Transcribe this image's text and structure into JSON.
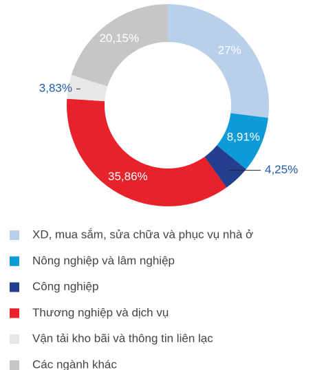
{
  "chart_data": {
    "type": "donut",
    "categories": [
      "XD, mua sắm, sửa chữa và phục vụ nhà ở",
      "Nông nghiệp và lâm nghiệp",
      "Công nghiệp",
      "Thương nghiệp và dịch vụ",
      "Vận tải kho bãi và thông tin liên lạc",
      "Các ngành khác"
    ],
    "values": [
      27,
      8.91,
      4.25,
      35.86,
      3.83,
      20.15
    ],
    "value_labels": [
      "27%",
      "8,91%",
      "4,25%",
      "35,86%",
      "3,83%",
      "20,15%"
    ],
    "colors": [
      "#b9d0ea",
      "#0e9bd8",
      "#243f8e",
      "#e8222b",
      "#e8e8e8",
      "#c6c6c6"
    ],
    "legend": "bottom"
  }
}
